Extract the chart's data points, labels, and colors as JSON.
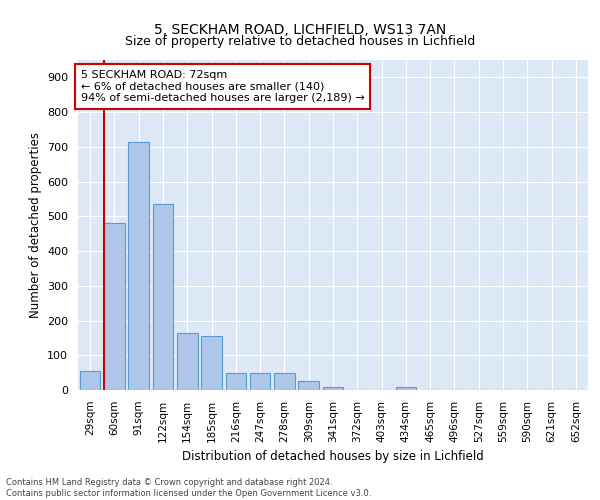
{
  "title1": "5, SECKHAM ROAD, LICHFIELD, WS13 7AN",
  "title2": "Size of property relative to detached houses in Lichfield",
  "xlabel": "Distribution of detached houses by size in Lichfield",
  "ylabel": "Number of detached properties",
  "categories": [
    "29sqm",
    "60sqm",
    "91sqm",
    "122sqm",
    "154sqm",
    "185sqm",
    "216sqm",
    "247sqm",
    "278sqm",
    "309sqm",
    "341sqm",
    "372sqm",
    "403sqm",
    "434sqm",
    "465sqm",
    "496sqm",
    "527sqm",
    "559sqm",
    "590sqm",
    "621sqm",
    "652sqm"
  ],
  "values": [
    55,
    480,
    715,
    535,
    165,
    155,
    50,
    50,
    50,
    25,
    10,
    0,
    0,
    10,
    0,
    0,
    0,
    0,
    0,
    0,
    0
  ],
  "bar_color": "#aec6e8",
  "bar_edge_color": "#5b9bd5",
  "annotation_box_text": "5 SECKHAM ROAD: 72sqm\n← 6% of detached houses are smaller (140)\n94% of semi-detached houses are larger (2,189) →",
  "footer1": "Contains HM Land Registry data © Crown copyright and database right 2024.",
  "footer2": "Contains public sector information licensed under the Open Government Licence v3.0.",
  "bg_color": "#ffffff",
  "plot_bg_color": "#dce8f5",
  "grid_color": "#ffffff",
  "red_line_color": "#cc0000",
  "box_edge_color": "#cc0000",
  "ylim": [
    0,
    950
  ],
  "yticks": [
    0,
    100,
    200,
    300,
    400,
    500,
    600,
    700,
    800,
    900
  ]
}
